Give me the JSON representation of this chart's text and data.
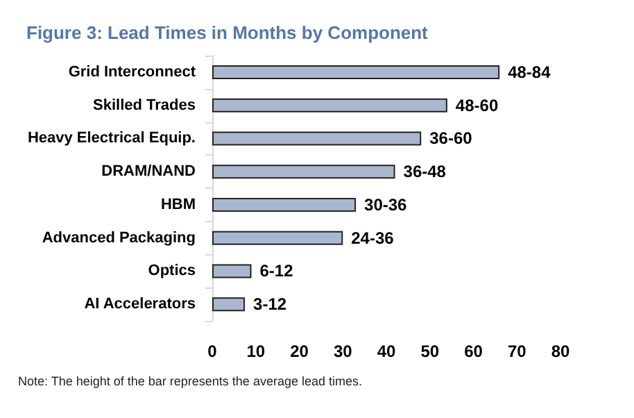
{
  "chart_data": {
    "type": "bar",
    "orientation": "horizontal",
    "title": "Figure 3: Lead Times in Months by Component",
    "categories": [
      "Grid Interconnect",
      "Skilled Trades",
      "Heavy Electrical Equip.",
      "DRAM/NAND",
      "HBM",
      "Advanced Packaging",
      "Optics",
      "AI Accelerators"
    ],
    "values": [
      66,
      54,
      48,
      42,
      33,
      30,
      9,
      7.5
    ],
    "value_labels": [
      "48-84",
      "48-60",
      "36-60",
      "36-48",
      "30-36",
      "24-36",
      "6-12",
      "3-12"
    ],
    "color": "#a9b8cf",
    "xlim": [
      0,
      80
    ],
    "xticks": [
      0,
      10,
      20,
      30,
      40,
      50,
      60,
      70,
      80
    ],
    "grid": false,
    "annotations": [
      "Note: The height of the bar represents the average lead times."
    ]
  }
}
